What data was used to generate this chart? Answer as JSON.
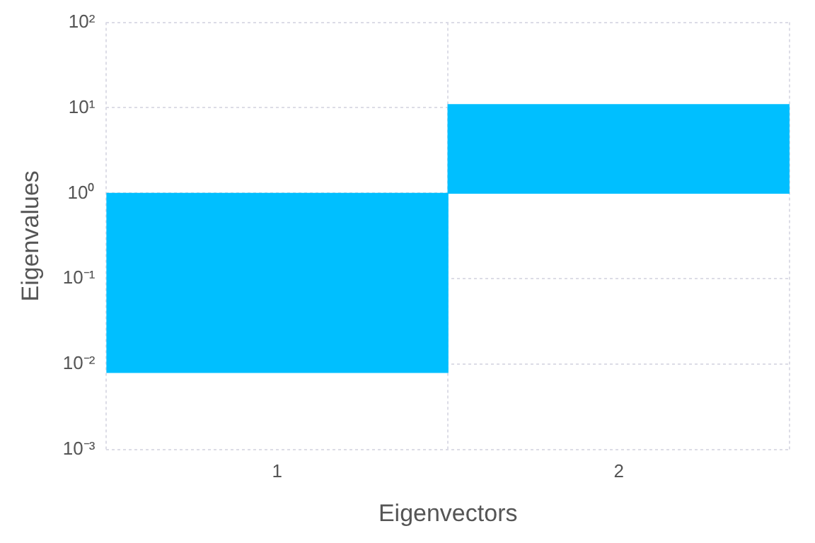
{
  "chart_data": {
    "type": "bar",
    "xlabel": "Eigenvectors",
    "ylabel": "Eigenvalues",
    "categories": [
      "1",
      "2"
    ],
    "base": [
      1,
      1
    ],
    "values": [
      -0.992,
      9.9
    ],
    "color": "#00bfff",
    "log": true,
    "ylim": [
      0.001,
      100
    ],
    "yticks": [
      {
        "value": 0.001,
        "label": "10⁻³"
      },
      {
        "value": 0.01,
        "label": "10⁻²"
      },
      {
        "value": 0.1,
        "label": "10⁻¹"
      },
      {
        "value": 1,
        "label": "10⁰"
      },
      {
        "value": 10,
        "label": "10¹"
      },
      {
        "value": 100,
        "label": "10²"
      }
    ],
    "grid": true,
    "legend": false
  }
}
